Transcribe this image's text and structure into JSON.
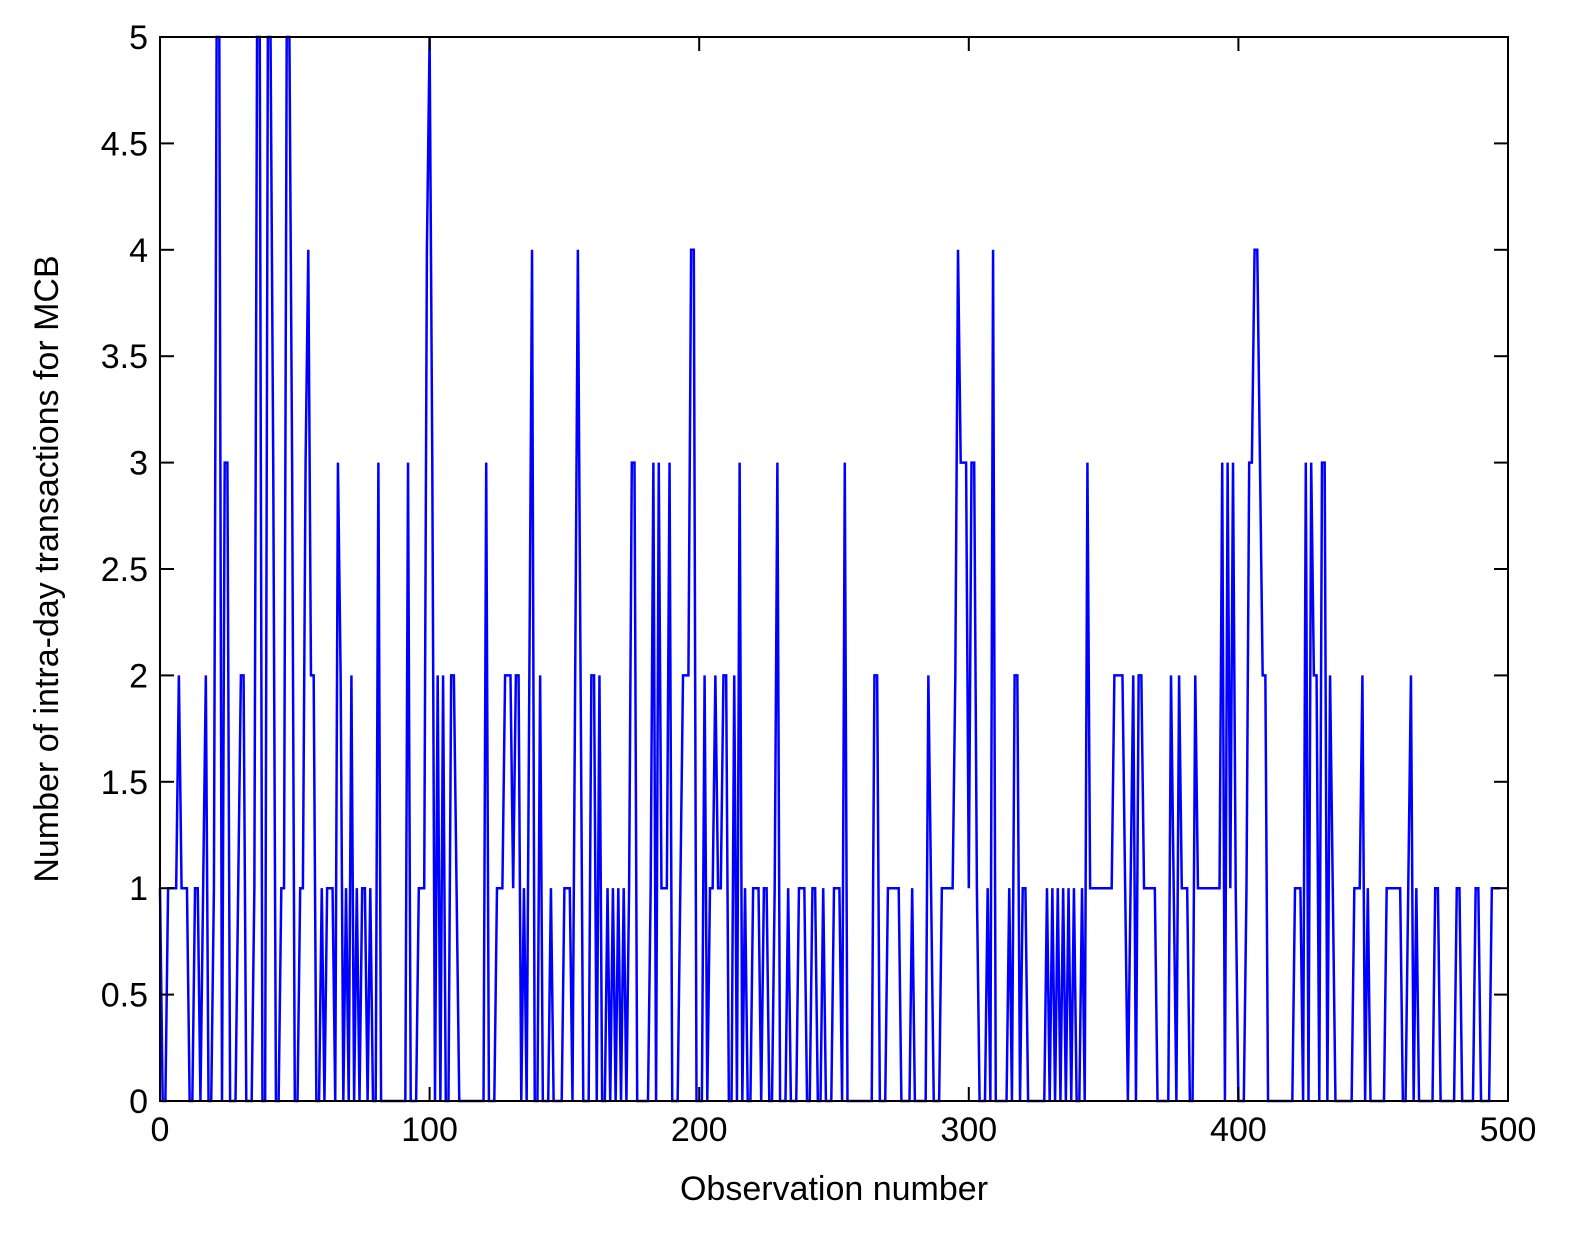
{
  "chart_data": {
    "type": "line",
    "xlabel": "Observation number",
    "ylabel": "Number of intra-day transactions for MCB",
    "xlim": [
      0,
      500
    ],
    "ylim": [
      0,
      5
    ],
    "xticks": [
      0,
      100,
      200,
      300,
      400,
      500
    ],
    "yticks": [
      0,
      0.5,
      1,
      1.5,
      2,
      2.5,
      3,
      3.5,
      4,
      4.5,
      5
    ],
    "x": [
      0,
      1,
      2,
      3,
      4,
      5,
      6,
      7,
      8,
      9,
      10,
      11,
      12,
      13,
      14,
      15,
      16,
      17,
      18,
      19,
      20,
      21,
      22,
      23,
      24,
      25,
      26,
      27,
      28,
      29,
      30,
      31,
      32,
      33,
      34,
      35,
      36,
      37,
      38,
      39,
      40,
      41,
      42,
      43,
      44,
      45,
      46,
      47,
      48,
      49,
      50,
      51,
      52,
      53,
      54,
      55,
      56,
      57,
      58,
      59,
      60,
      61,
      62,
      63,
      64,
      65,
      66,
      67,
      68,
      69,
      70,
      71,
      72,
      73,
      74,
      75,
      76,
      77,
      78,
      79,
      80,
      81,
      82,
      83,
      84,
      85,
      86,
      87,
      88,
      89,
      90,
      91,
      92,
      93,
      94,
      95,
      96,
      97,
      98,
      99,
      100,
      101,
      102,
      103,
      104,
      105,
      106,
      107,
      108,
      109,
      110,
      111,
      112,
      113,
      114,
      115,
      116,
      117,
      118,
      119,
      120,
      121,
      122,
      123,
      124,
      125,
      126,
      127,
      128,
      129,
      130,
      131,
      132,
      133,
      134,
      135,
      136,
      137,
      138,
      139,
      140,
      141,
      142,
      143,
      144,
      145,
      146,
      147,
      148,
      149,
      150,
      151,
      152,
      153,
      154,
      155,
      156,
      157,
      158,
      159,
      160,
      161,
      162,
      163,
      164,
      165,
      166,
      167,
      168,
      169,
      170,
      171,
      172,
      173,
      174,
      175,
      176,
      177,
      178,
      179,
      180,
      181,
      182,
      183,
      184,
      185,
      186,
      187,
      188,
      189,
      190,
      191,
      192,
      193,
      194,
      195,
      196,
      197,
      198,
      199,
      200,
      201,
      202,
      203,
      204,
      205,
      206,
      207,
      208,
      209,
      210,
      211,
      212,
      213,
      214,
      215,
      216,
      217,
      218,
      219,
      220,
      221,
      222,
      223,
      224,
      225,
      226,
      227,
      228,
      229,
      230,
      231,
      232,
      233,
      234,
      235,
      236,
      237,
      238,
      239,
      240,
      241,
      242,
      243,
      244,
      245,
      246,
      247,
      248,
      249,
      250,
      251,
      252,
      253,
      254,
      255,
      256,
      257,
      258,
      259,
      260,
      261,
      262,
      263,
      264,
      265,
      266,
      267,
      268,
      269,
      270,
      271,
      272,
      273,
      274,
      275,
      276,
      277,
      278,
      279,
      280,
      281,
      282,
      283,
      284,
      285,
      286,
      287,
      288,
      289,
      290,
      291,
      292,
      293,
      294,
      295,
      296,
      297,
      298,
      299,
      300,
      301,
      302,
      303,
      304,
      305,
      306,
      307,
      308,
      309,
      310,
      311,
      312,
      313,
      314,
      315,
      316,
      317,
      318,
      319,
      320,
      321,
      322,
      323,
      324,
      325,
      326,
      327,
      328,
      329,
      330,
      331,
      332,
      333,
      334,
      335,
      336,
      337,
      338,
      339,
      340,
      341,
      342,
      343,
      344,
      345,
      346,
      347,
      348,
      349,
      350,
      351,
      352,
      353,
      354,
      355,
      356,
      357,
      358,
      359,
      360,
      361,
      362,
      363,
      364,
      365,
      366,
      367,
      368,
      369,
      370,
      371,
      372,
      373,
      374,
      375,
      376,
      377,
      378,
      379,
      380,
      381,
      382,
      383,
      384,
      385,
      386,
      387,
      388,
      389,
      390,
      391,
      392,
      393,
      394,
      395,
      396,
      397,
      398,
      399,
      400,
      401,
      402,
      403,
      404,
      405,
      406,
      407,
      408,
      409,
      410,
      411,
      412,
      413,
      414,
      415,
      416,
      417,
      418,
      419,
      420,
      421,
      422,
      423,
      424,
      425,
      426,
      427,
      428,
      429,
      430,
      431,
      432,
      433,
      434,
      435,
      436,
      437,
      438,
      439,
      440,
      441,
      442,
      443,
      444,
      445,
      446,
      447,
      448,
      449,
      450,
      451,
      452,
      453,
      454,
      455,
      456,
      457,
      458,
      459,
      460,
      461,
      462,
      463,
      464,
      465,
      466,
      467,
      468,
      469,
      470,
      471,
      472,
      473,
      474,
      475,
      476,
      477,
      478,
      479,
      480,
      481,
      482,
      483,
      484,
      485,
      486,
      487,
      488,
      489,
      490,
      491,
      492,
      493,
      494,
      495,
      496,
      497
    ],
    "series": [
      {
        "color": "#0000ff",
        "values": [
          1,
          0,
          0,
          1,
          1,
          1,
          1,
          2,
          1,
          1,
          1,
          0,
          0,
          1,
          1,
          0,
          1,
          2,
          0,
          0,
          1,
          5,
          5,
          0,
          3,
          3,
          0,
          0,
          0,
          1,
          2,
          2,
          0,
          0,
          0,
          1,
          5,
          5,
          0,
          0,
          5,
          5,
          3,
          0,
          0,
          1,
          1,
          5,
          5,
          3,
          0,
          0,
          1,
          1,
          3,
          4,
          2,
          2,
          0,
          0,
          1,
          0,
          1,
          1,
          1,
          0,
          3,
          2,
          0,
          1,
          0,
          2,
          0,
          1,
          0,
          1,
          1,
          0,
          1,
          0,
          0,
          3,
          0,
          0,
          0,
          0,
          0,
          0,
          0,
          0,
          0,
          0,
          3,
          0,
          0,
          0,
          1,
          1,
          1,
          4,
          5,
          3,
          0,
          2,
          0,
          2,
          0,
          0,
          2,
          2,
          1,
          0,
          0,
          0,
          0,
          0,
          0,
          0,
          0,
          0,
          0,
          3,
          0,
          0,
          0,
          1,
          1,
          1,
          2,
          2,
          2,
          1,
          2,
          2,
          0,
          1,
          0,
          2,
          4,
          0,
          0,
          2,
          0,
          0,
          0,
          1,
          0,
          0,
          0,
          0,
          1,
          1,
          1,
          0,
          2,
          4,
          2,
          0,
          0,
          0,
          2,
          2,
          0,
          2,
          0,
          0,
          1,
          0,
          1,
          0,
          1,
          0,
          1,
          0,
          1,
          3,
          3,
          0,
          0,
          0,
          0,
          0,
          1,
          3,
          0,
          3,
          1,
          1,
          1,
          3,
          0,
          0,
          0,
          1,
          2,
          2,
          2,
          4,
          4,
          0,
          0,
          0,
          2,
          0,
          1,
          1,
          2,
          1,
          1,
          2,
          2,
          0,
          0,
          2,
          0,
          3,
          0,
          1,
          0,
          0,
          1,
          1,
          1,
          0,
          1,
          1,
          0,
          0,
          1,
          3,
          0,
          0,
          0,
          1,
          0,
          0,
          0,
          1,
          1,
          1,
          0,
          0,
          1,
          1,
          0,
          0,
          1,
          0,
          0,
          0,
          1,
          1,
          1,
          0,
          3,
          0,
          0,
          0,
          0,
          0,
          0,
          0,
          0,
          0,
          0,
          2,
          2,
          0,
          0,
          0,
          1,
          1,
          1,
          1,
          1,
          0,
          0,
          0,
          0,
          1,
          0,
          0,
          0,
          0,
          0,
          2,
          1,
          0,
          0,
          0,
          1,
          1,
          1,
          1,
          1,
          2,
          4,
          3,
          3,
          3,
          1,
          3,
          3,
          1,
          0,
          0,
          0,
          1,
          0,
          4,
          0,
          0,
          0,
          0,
          0,
          1,
          0,
          2,
          2,
          0,
          1,
          1,
          0,
          0,
          0,
          0,
          0,
          0,
          0,
          1,
          0,
          1,
          0,
          1,
          0,
          1,
          0,
          1,
          0,
          1,
          0,
          0,
          1,
          0,
          3,
          1,
          1,
          1,
          1,
          1,
          1,
          1,
          1,
          1,
          2,
          2,
          2,
          2,
          1,
          0,
          1,
          2,
          0,
          2,
          2,
          1,
          1,
          1,
          1,
          1,
          0,
          0,
          0,
          0,
          0,
          2,
          1,
          0,
          2,
          1,
          1,
          1,
          0,
          0,
          2,
          1,
          1,
          1,
          1,
          1,
          1,
          1,
          1,
          1,
          3,
          0,
          3,
          1,
          3,
          1,
          0,
          0,
          0,
          1,
          3,
          3,
          4,
          4,
          3,
          2,
          2,
          0,
          0,
          0,
          0,
          0,
          0,
          0,
          0,
          0,
          0,
          1,
          1,
          1,
          0,
          3,
          0,
          3,
          2,
          2,
          0,
          3,
          3,
          0,
          2,
          1,
          0,
          0,
          0,
          0,
          0,
          0,
          0,
          1,
          1,
          1,
          2,
          0,
          1,
          0,
          0,
          0,
          0,
          0,
          0,
          1,
          1,
          1,
          1,
          1,
          1,
          0,
          0,
          1,
          2,
          0,
          1,
          0,
          0,
          0,
          0,
          0,
          0,
          1,
          1,
          0,
          0,
          0,
          0,
          0,
          0,
          1,
          1,
          0,
          0,
          0,
          0,
          0,
          1,
          1,
          0,
          0,
          0,
          0,
          1,
          1,
          1,
          1
        ]
      }
    ]
  }
}
